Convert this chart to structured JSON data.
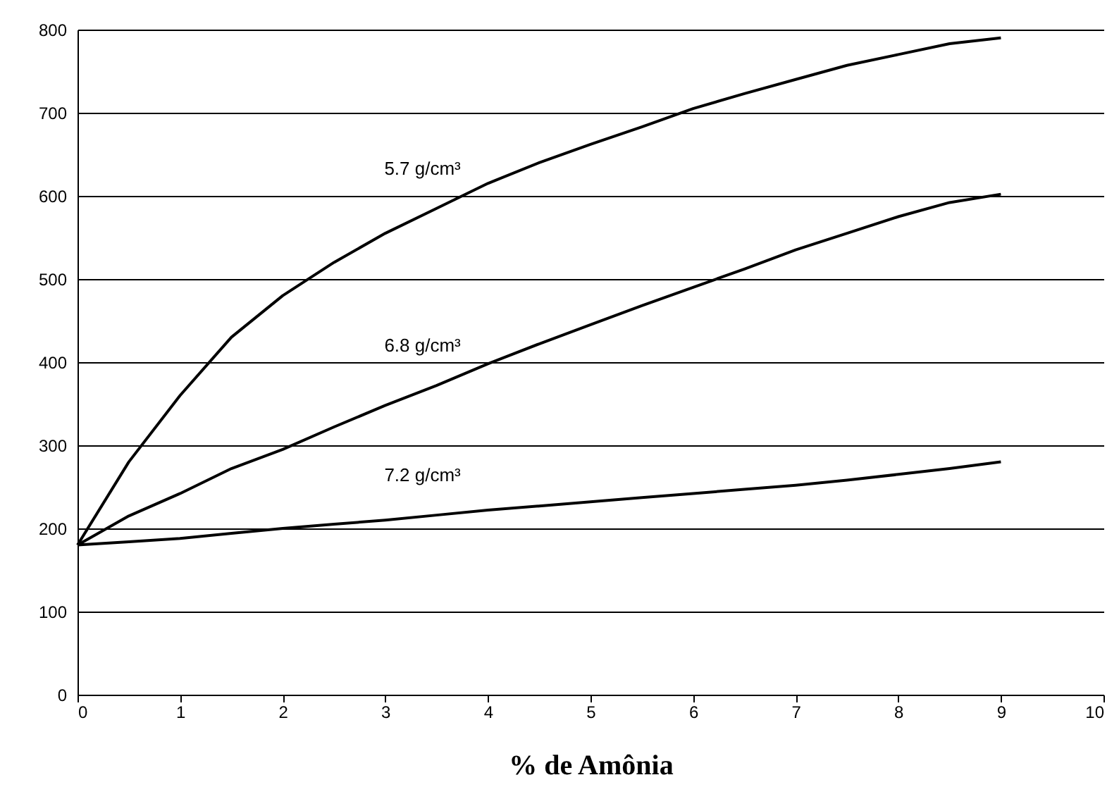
{
  "chart_data": {
    "type": "line",
    "xlabel": "% de Amônia",
    "x": [
      0,
      0.5,
      1,
      1.5,
      2,
      2.5,
      3,
      3.5,
      4,
      4.5,
      5,
      5.5,
      6,
      6.5,
      7,
      7.5,
      8,
      8.5,
      9
    ],
    "series": [
      {
        "name": "5.7 g/cm³",
        "color": "#000000",
        "values": [
          180,
          280,
          360,
          430,
          480,
          520,
          555,
          585,
          615,
          640,
          662,
          683,
          705,
          723,
          740,
          757,
          770,
          783,
          790
        ]
      },
      {
        "name": "6.8 g/cm³",
        "color": "#000000",
        "values": [
          180,
          215,
          242,
          272,
          295,
          322,
          348,
          372,
          398,
          422,
          445,
          468,
          490,
          512,
          535,
          555,
          575,
          592,
          602
        ]
      },
      {
        "name": "7.2 g/cm³",
        "color": "#000000",
        "values": [
          180,
          184,
          188,
          194,
          200,
          205,
          210,
          216,
          222,
          227,
          232,
          237,
          242,
          247,
          252,
          258,
          265,
          272,
          280
        ]
      }
    ],
    "xlim": [
      0,
      10
    ],
    "xticks": [
      0,
      1,
      2,
      3,
      4,
      5,
      6,
      7,
      8,
      9,
      10
    ],
    "ylim": [
      0,
      800
    ],
    "yticks": [
      0,
      100,
      200,
      300,
      400,
      500,
      600,
      700,
      800
    ],
    "grid": "y",
    "legend": false,
    "marker": "none",
    "line_style": "solid"
  }
}
